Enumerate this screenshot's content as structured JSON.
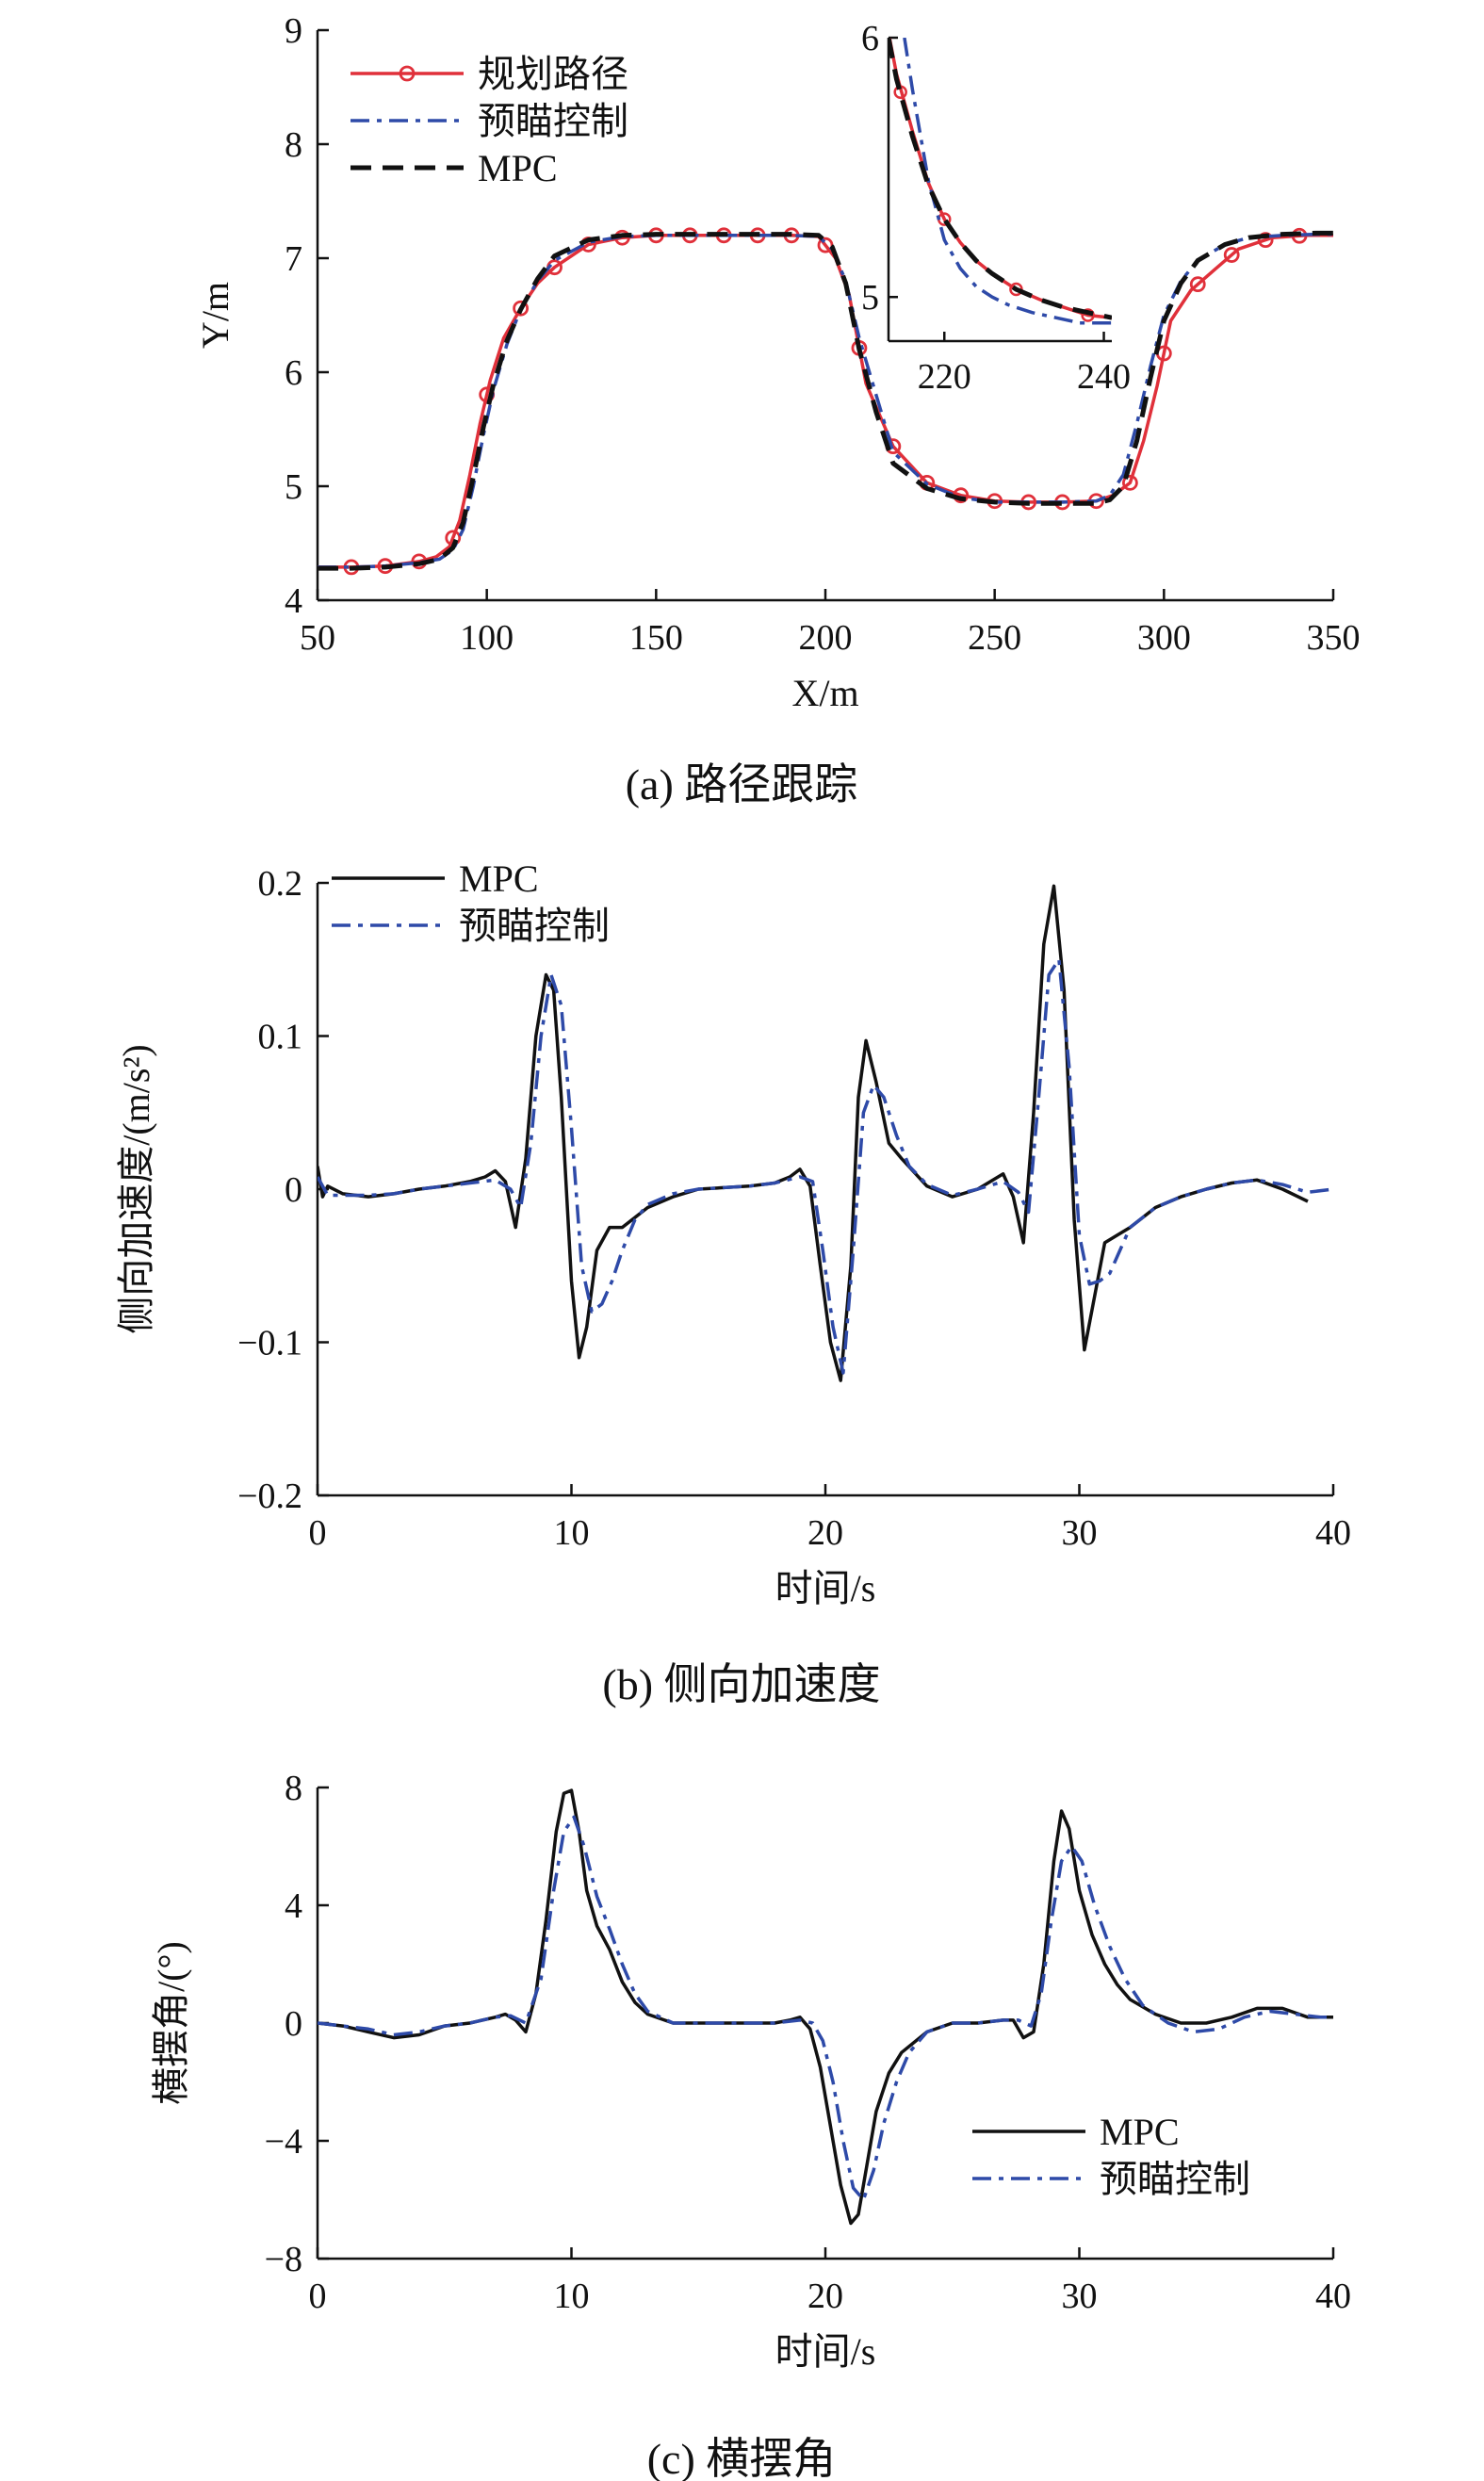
{
  "chart_data": [
    {
      "type": "line",
      "caption": "(a) 路径跟踪",
      "xlabel": "X/m",
      "ylabel": "Y/m",
      "xlim": [
        50,
        350
      ],
      "ylim": [
        4,
        9
      ],
      "xticks": [
        50,
        100,
        150,
        200,
        250,
        300,
        350
      ],
      "yticks": [
        4,
        5,
        6,
        7,
        8,
        9
      ],
      "legend_position": "top-left",
      "series": [
        {
          "name": "规划路径",
          "color": "#e0303a",
          "style": "solid-circle-markers",
          "x": [
            50,
            60,
            70,
            80,
            85,
            89,
            92,
            95,
            98,
            101,
            105,
            110,
            115,
            120,
            130,
            140,
            150,
            160,
            170,
            180,
            190,
            198,
            203,
            207,
            212,
            220,
            230,
            240,
            250,
            260,
            270,
            280,
            285,
            290,
            294,
            298,
            302,
            308,
            315,
            322,
            332,
            342,
            350
          ],
          "y": [
            4.29,
            4.29,
            4.3,
            4.34,
            4.38,
            4.47,
            4.7,
            5.1,
            5.55,
            5.93,
            6.3,
            6.56,
            6.78,
            6.92,
            7.12,
            7.18,
            7.2,
            7.2,
            7.2,
            7.2,
            7.2,
            7.19,
            7.0,
            6.68,
            5.9,
            5.35,
            5.03,
            4.92,
            4.87,
            4.86,
            4.86,
            4.87,
            4.92,
            5.03,
            5.4,
            5.88,
            6.45,
            6.72,
            6.9,
            7.08,
            7.18,
            7.2,
            7.2
          ]
        },
        {
          "name": "预瞄控制",
          "color": "#2e4aa8",
          "style": "dashdot",
          "x": [
            50,
            60,
            70,
            80,
            86,
            90,
            93,
            96,
            99,
            102,
            106,
            110,
            115,
            120,
            130,
            140,
            150,
            160,
            170,
            180,
            190,
            198,
            202,
            206,
            210,
            215,
            220,
            230,
            240,
            250,
            260,
            270,
            280,
            284,
            288,
            292,
            296,
            300,
            305,
            310,
            318,
            325,
            335,
            345,
            350
          ],
          "y": [
            4.29,
            4.29,
            4.3,
            4.33,
            4.36,
            4.44,
            4.62,
            5.0,
            5.45,
            5.85,
            6.25,
            6.55,
            6.8,
            6.98,
            7.14,
            7.19,
            7.2,
            7.2,
            7.2,
            7.2,
            7.2,
            7.19,
            7.08,
            6.8,
            6.3,
            5.8,
            5.3,
            5.02,
            4.9,
            4.86,
            4.86,
            4.86,
            4.87,
            4.92,
            5.1,
            5.55,
            6.05,
            6.5,
            6.8,
            6.98,
            7.12,
            7.18,
            7.2,
            7.21,
            7.21
          ]
        },
        {
          "name": "MPC",
          "color": "#111111",
          "style": "dashed",
          "x": [
            50,
            60,
            70,
            80,
            86,
            90,
            93,
            96,
            99,
            102,
            106,
            110,
            115,
            120,
            130,
            140,
            150,
            160,
            170,
            180,
            190,
            198,
            202,
            206,
            210,
            215,
            220,
            230,
            240,
            250,
            260,
            270,
            280,
            284,
            288,
            292,
            296,
            300,
            305,
            310,
            318,
            325,
            335,
            345,
            350
          ],
          "y": [
            4.28,
            4.28,
            4.29,
            4.32,
            4.36,
            4.46,
            4.68,
            5.08,
            5.52,
            5.9,
            6.28,
            6.55,
            6.82,
            7.02,
            7.16,
            7.2,
            7.21,
            7.21,
            7.21,
            7.21,
            7.21,
            7.2,
            7.1,
            6.78,
            6.2,
            5.65,
            5.2,
            4.98,
            4.89,
            4.86,
            4.85,
            4.85,
            4.85,
            4.88,
            5.0,
            5.4,
            5.95,
            6.45,
            6.78,
            6.98,
            7.12,
            7.18,
            7.21,
            7.22,
            7.22
          ]
        }
      ],
      "inset": {
        "xlim": [
          213,
          241
        ],
        "ylim": [
          4.83,
          6.0
        ],
        "xticks": [
          220,
          240
        ],
        "yticks": [
          5,
          6
        ],
        "series": [
          {
            "name": "规划路径",
            "color": "#e0303a",
            "style": "solid-circle-markers",
            "x": [
              213,
              214,
              216,
              218,
              220,
              222,
              224,
              226,
              229,
              232,
              235,
              238,
              241
            ],
            "y": [
              6.02,
              5.86,
              5.64,
              5.44,
              5.3,
              5.21,
              5.14,
              5.09,
              5.03,
              4.99,
              4.96,
              4.93,
              4.92
            ]
          },
          {
            "name": "预瞄控制",
            "color": "#2e4aa8",
            "style": "dashdot",
            "x": [
              215,
              216,
              218,
              220,
              222,
              224,
              226,
              228,
              231,
              234,
              237,
              241
            ],
            "y": [
              6.0,
              5.8,
              5.45,
              5.22,
              5.11,
              5.04,
              5.0,
              4.97,
              4.94,
              4.92,
              4.9,
              4.9
            ]
          },
          {
            "name": "MPC",
            "color": "#111111",
            "style": "dashed",
            "x": [
              213,
              214,
              216,
              218,
              220,
              222,
              224,
              226,
              229,
              232,
              235,
              238,
              241
            ],
            "y": [
              6.0,
              5.84,
              5.62,
              5.43,
              5.3,
              5.21,
              5.14,
              5.09,
              5.03,
              4.99,
              4.96,
              4.94,
              4.92
            ]
          }
        ]
      }
    },
    {
      "type": "line",
      "caption": "(b) 侧向加速度",
      "xlabel": "时间/s",
      "ylabel": "侧向加速度/(m/s²)",
      "xlim": [
        0,
        40
      ],
      "ylim": [
        -0.2,
        0.2
      ],
      "xticks": [
        0,
        10,
        20,
        30,
        40
      ],
      "yticks": [
        -0.2,
        -0.1,
        0,
        0.1,
        0.2
      ],
      "ytick_labels": [
        "−0.2",
        "−0.1",
        "0",
        "0.1",
        "0.2"
      ],
      "legend_position": "top-left",
      "series": [
        {
          "name": "MPC",
          "color": "#111111",
          "style": "solid",
          "x": [
            0,
            0.2,
            0.4,
            1,
            2,
            3,
            4,
            5,
            6,
            6.6,
            7,
            7.4,
            7.8,
            8.2,
            8.6,
            9,
            9.3,
            9.6,
            10,
            10.3,
            10.6,
            11,
            11.5,
            12,
            13,
            14,
            15,
            16,
            17,
            18,
            18.6,
            19,
            19.4,
            19.8,
            20.2,
            20.6,
            21,
            21.3,
            21.6,
            22,
            22.5,
            23,
            24,
            25,
            26,
            26.6,
            27,
            27.4,
            27.8,
            28.2,
            28.6,
            29,
            29.4,
            29.8,
            30.2,
            30.6,
            31,
            31.5,
            32,
            33,
            34,
            35,
            36,
            37,
            38,
            39
          ],
          "y": [
            0.015,
            -0.005,
            0.002,
            -0.003,
            -0.005,
            -0.003,
            0,
            0.002,
            0.005,
            0.008,
            0.012,
            0.005,
            -0.025,
            0.02,
            0.1,
            0.14,
            0.13,
            0.06,
            -0.06,
            -0.11,
            -0.09,
            -0.04,
            -0.025,
            -0.025,
            -0.012,
            -0.005,
            0,
            0.001,
            0.002,
            0.004,
            0.008,
            0.013,
            0.002,
            -0.05,
            -0.1,
            -0.125,
            -0.05,
            0.06,
            0.097,
            0.07,
            0.03,
            0.02,
            0.002,
            -0.005,
            0,
            0.006,
            0.01,
            -0.005,
            -0.035,
            0.05,
            0.16,
            0.198,
            0.13,
            -0.02,
            -0.105,
            -0.07,
            -0.035,
            -0.03,
            -0.025,
            -0.012,
            -0.005,
            0,
            0.004,
            0.006,
            0,
            -0.008
          ]
        },
        {
          "name": "预瞄控制",
          "color": "#2e4aa8",
          "style": "dashdot",
          "x": [
            0,
            0.4,
            1,
            2,
            3,
            4,
            5,
            6,
            7,
            7.6,
            8,
            8.4,
            8.8,
            9.2,
            9.6,
            10,
            10.4,
            10.8,
            11.2,
            11.6,
            12,
            12.5,
            13,
            14,
            15,
            16,
            17,
            18,
            19,
            19.5,
            19.9,
            20.3,
            20.7,
            21.1,
            21.5,
            21.9,
            22.3,
            22.8,
            23.3,
            24,
            25,
            26,
            27,
            27.6,
            28,
            28.4,
            28.8,
            29.2,
            29.6,
            30,
            30.4,
            30.8,
            31.2,
            31.6,
            32,
            33,
            34,
            35,
            36,
            37,
            38,
            39,
            40
          ],
          "y": [
            0.008,
            -0.004,
            -0.004,
            -0.004,
            -0.003,
            0,
            0.002,
            0.004,
            0.006,
            0,
            -0.012,
            0.03,
            0.1,
            0.14,
            0.12,
            0.04,
            -0.05,
            -0.08,
            -0.075,
            -0.06,
            -0.04,
            -0.02,
            -0.01,
            -0.003,
            0,
            0.001,
            0.002,
            0.004,
            0.008,
            0.005,
            -0.04,
            -0.09,
            -0.12,
            -0.04,
            0.05,
            0.068,
            0.06,
            0.035,
            0.015,
            0.003,
            -0.004,
            0,
            0.005,
            -0.002,
            -0.015,
            0.06,
            0.14,
            0.15,
            0.08,
            -0.03,
            -0.062,
            -0.06,
            -0.055,
            -0.04,
            -0.025,
            -0.012,
            -0.005,
            0,
            0.004,
            0.006,
            0.003,
            -0.002,
            0
          ]
        }
      ]
    },
    {
      "type": "line",
      "caption": "(c) 横摆角",
      "xlabel": "时间/s",
      "ylabel": "横摆角/(°)",
      "xlim": [
        0,
        40
      ],
      "ylim": [
        -8,
        8
      ],
      "xticks": [
        0,
        10,
        20,
        30,
        40
      ],
      "yticks": [
        -8,
        -4,
        0,
        4,
        8
      ],
      "ytick_labels": [
        "−8",
        "−4",
        "0",
        "4",
        "8"
      ],
      "legend_position": "bottom-right",
      "series": [
        {
          "name": "MPC",
          "color": "#111111",
          "style": "solid",
          "x": [
            0,
            1,
            2,
            3,
            4,
            5,
            6,
            7,
            7.4,
            7.8,
            8.2,
            8.6,
            9,
            9.4,
            9.7,
            10,
            10.3,
            10.6,
            11,
            11.5,
            12,
            12.5,
            13,
            14,
            15,
            16,
            17,
            18,
            18.6,
            19,
            19.4,
            19.8,
            20.2,
            20.6,
            21,
            21.3,
            21.6,
            22,
            22.5,
            23,
            24,
            25,
            26,
            27,
            27.4,
            27.8,
            28.2,
            28.6,
            29,
            29.3,
            29.6,
            30,
            30.5,
            31,
            31.5,
            32,
            33,
            34,
            35,
            36,
            37,
            38,
            39,
            40
          ],
          "y": [
            0,
            -0.1,
            -0.3,
            -0.5,
            -0.4,
            -0.1,
            0,
            0.2,
            0.3,
            0.1,
            -0.3,
            1.0,
            3.5,
            6.5,
            7.8,
            7.9,
            6.5,
            4.5,
            3.3,
            2.5,
            1.4,
            0.7,
            0.3,
            0,
            0,
            0,
            0,
            0,
            0.1,
            0.2,
            -0.2,
            -1.5,
            -3.5,
            -5.5,
            -6.8,
            -6.5,
            -5.0,
            -3.0,
            -1.7,
            -1.0,
            -0.3,
            0,
            0,
            0.1,
            0.1,
            -0.5,
            -0.3,
            2.0,
            5.5,
            7.2,
            6.6,
            4.5,
            3.0,
            2.0,
            1.3,
            0.8,
            0.3,
            0,
            0,
            0.2,
            0.5,
            0.5,
            0.2,
            0.2
          ]
        },
        {
          "name": "预瞄控制",
          "color": "#2e4aa8",
          "style": "dashdot",
          "x": [
            0,
            1,
            2,
            3,
            4,
            5,
            6,
            7,
            7.6,
            8.2,
            8.8,
            9.3,
            9.7,
            10.1,
            10.5,
            11,
            11.5,
            12,
            12.5,
            13,
            14,
            15,
            16,
            17,
            18,
            19,
            19.5,
            19.9,
            20.3,
            20.7,
            21.1,
            21.5,
            21.9,
            22.3,
            22.8,
            23.3,
            24,
            25,
            26,
            27,
            27.6,
            28.1,
            28.5,
            28.9,
            29.3,
            29.7,
            30.1,
            30.6,
            31.2,
            31.8,
            32.5,
            33.5,
            34.5,
            35.5,
            36.5,
            37.5,
            38.5,
            39.5,
            40
          ],
          "y": [
            0,
            -0.1,
            -0.2,
            -0.4,
            -0.3,
            -0.1,
            0,
            0.2,
            0.25,
            0,
            1.5,
            4.5,
            6.5,
            7.0,
            6.0,
            4.3,
            3.2,
            2.0,
            1.0,
            0.4,
            0,
            0,
            0,
            0,
            0,
            0.1,
            0,
            -0.6,
            -2.0,
            -4.0,
            -5.6,
            -6.0,
            -5.0,
            -3.4,
            -2.0,
            -1.0,
            -0.3,
            0,
            0,
            0.1,
            0.1,
            -0.1,
            1.0,
            3.5,
            5.5,
            6.0,
            5.5,
            4.0,
            2.6,
            1.5,
            0.6,
            0,
            -0.3,
            -0.2,
            0.2,
            0.4,
            0.3,
            0.2,
            0.2
          ]
        }
      ]
    }
  ]
}
